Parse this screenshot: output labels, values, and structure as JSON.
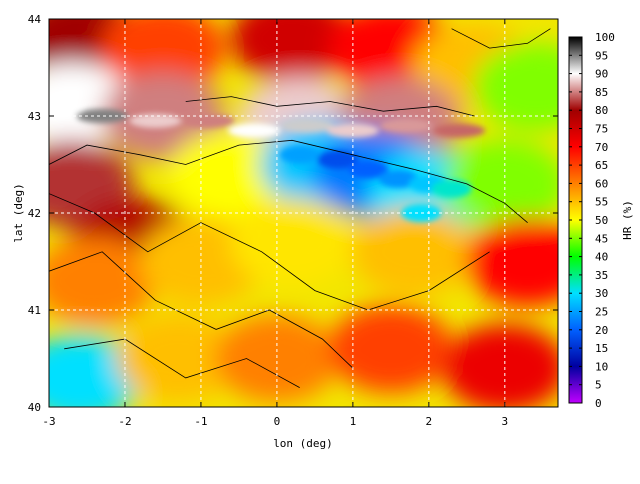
{
  "chart_data": {
    "type": "heatmap",
    "title": "",
    "xlabel": "lon (deg)",
    "ylabel": "lat (deg)",
    "xlim": [
      -3,
      3.7
    ],
    "ylim": [
      40,
      44
    ],
    "x_ticks": [
      -3,
      -2,
      -1,
      0,
      1,
      2,
      3
    ],
    "y_ticks": [
      40,
      41,
      42,
      43,
      44
    ],
    "grid": true,
    "colorbar": {
      "label": "HR (%)",
      "range": [
        0,
        100
      ],
      "ticks": [
        0,
        5,
        10,
        15,
        20,
        25,
        30,
        35,
        40,
        45,
        50,
        55,
        60,
        65,
        70,
        75,
        80,
        85,
        90,
        95,
        100
      ],
      "colors": [
        "#c000ff",
        "#0000a0",
        "#0060ff",
        "#00e0ff",
        "#00ff00",
        "#ffff00",
        "#ff8000",
        "#ff0000",
        "#a00000",
        "#ffffff",
        "#000000"
      ]
    },
    "field_samples": [
      {
        "lon": -2.6,
        "lat": 43.8,
        "hr": 80
      },
      {
        "lon": -1.5,
        "lat": 43.7,
        "hr": 65
      },
      {
        "lon": 0.2,
        "lat": 43.8,
        "hr": 75
      },
      {
        "lon": 1.5,
        "lat": 43.7,
        "hr": 70
      },
      {
        "lon": 2.6,
        "lat": 43.5,
        "hr": 55
      },
      {
        "lon": 3.4,
        "lat": 43.3,
        "hr": 45
      },
      {
        "lon": -2.7,
        "lat": 43.1,
        "hr": 90
      },
      {
        "lon": -1.5,
        "lat": 43.0,
        "hr": 85
      },
      {
        "lon": 0.3,
        "lat": 42.95,
        "hr": 88
      },
      {
        "lon": 1.6,
        "lat": 42.95,
        "hr": 85
      },
      {
        "lon": -2.7,
        "lat": 42.3,
        "hr": 82
      },
      {
        "lon": -1.9,
        "lat": 41.7,
        "hr": 78
      },
      {
        "lon": -0.6,
        "lat": 42.4,
        "hr": 50
      },
      {
        "lon": 0.6,
        "lat": 42.5,
        "hr": 28
      },
      {
        "lon": 1.3,
        "lat": 42.4,
        "hr": 22
      },
      {
        "lon": 2.0,
        "lat": 42.2,
        "hr": 30
      },
      {
        "lon": 3.0,
        "lat": 42.3,
        "hr": 45
      },
      {
        "lon": -2.4,
        "lat": 41.3,
        "hr": 60
      },
      {
        "lon": -1.0,
        "lat": 41.5,
        "hr": 55
      },
      {
        "lon": 0.2,
        "lat": 41.7,
        "hr": 52
      },
      {
        "lon": 1.8,
        "lat": 41.6,
        "hr": 55
      },
      {
        "lon": 3.3,
        "lat": 41.5,
        "hr": 70
      },
      {
        "lon": -2.6,
        "lat": 40.3,
        "hr": 30
      },
      {
        "lon": -1.3,
        "lat": 40.5,
        "hr": 55
      },
      {
        "lon": 0.0,
        "lat": 40.5,
        "hr": 60
      },
      {
        "lon": 1.5,
        "lat": 40.6,
        "hr": 65
      },
      {
        "lon": 3.0,
        "lat": 40.4,
        "hr": 72
      }
    ]
  }
}
